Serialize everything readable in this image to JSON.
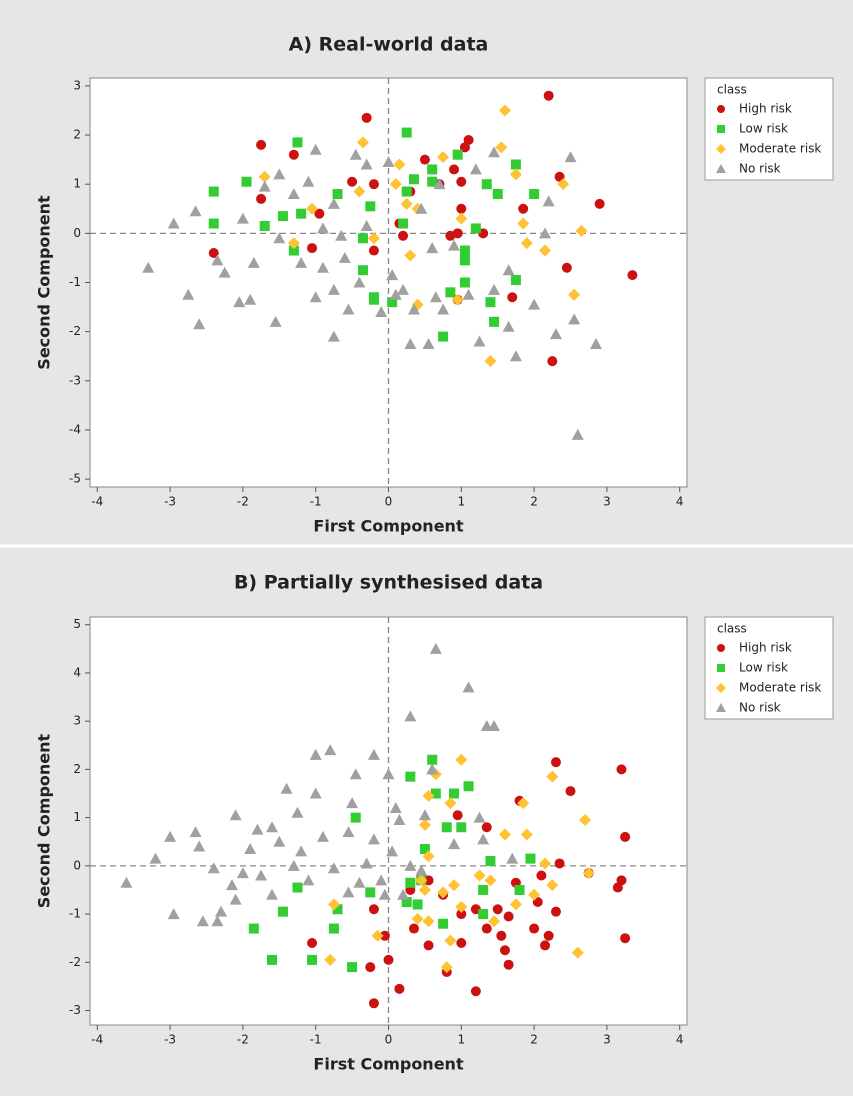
{
  "chart_data": [
    {
      "type": "scatter",
      "title": "A) Real-world data",
      "x_label": "First Component",
      "y_label": "Second Component",
      "legend_title": "class",
      "legend": "right",
      "xlim": [
        -4.1,
        4.1
      ],
      "ylim": [
        -5.16,
        3.16
      ],
      "xticks": [
        -4,
        -3,
        -2,
        -1,
        0,
        1,
        2,
        3,
        4
      ],
      "yticks": [
        -5,
        -4,
        -3,
        -2,
        -1,
        0,
        1,
        2,
        3
      ],
      "vline": 0,
      "hline": 0,
      "series": [
        {
          "name": "High risk",
          "color": "#cc1111",
          "marker": "circle",
          "x": [
            -0.3,
            2.2,
            -1.75,
            -1.3,
            1.1,
            1.05,
            -0.5,
            0.5,
            0.9,
            2.35,
            2.9,
            1.85,
            -1.75,
            -0.95,
            0.15,
            0.95,
            1.3,
            -2.4,
            -0.2,
            -1.05,
            2.45,
            3.35,
            1.7,
            0.95,
            2.25,
            0.7,
            1.0,
            -0.2,
            0.3,
            1.0,
            0.85,
            0.2
          ],
          "values": [
            2.35,
            2.8,
            1.8,
            1.6,
            1.9,
            1.75,
            1.05,
            1.5,
            1.3,
            1.15,
            0.6,
            0.5,
            0.7,
            0.4,
            0.2,
            0.0,
            0.0,
            -0.4,
            -0.35,
            -0.3,
            -0.7,
            -0.85,
            -1.3,
            -1.35,
            -2.6,
            1.0,
            1.05,
            1.0,
            0.85,
            0.5,
            -0.05,
            -0.05
          ]
        },
        {
          "name": "Low risk",
          "color": "#33cc33",
          "marker": "square",
          "x": [
            -1.25,
            0.25,
            0.95,
            -2.4,
            -1.95,
            -2.4,
            -1.7,
            -1.45,
            -1.2,
            -0.7,
            -0.25,
            0.25,
            0.35,
            0.6,
            1.35,
            1.75,
            1.5,
            2.0,
            1.2,
            1.05,
            0.2,
            -0.35,
            -0.35,
            1.05,
            1.05,
            1.4,
            1.45,
            1.75,
            0.85,
            -0.2,
            0.05,
            -0.2,
            0.75,
            -1.3,
            0.6
          ],
          "values": [
            1.85,
            2.05,
            1.6,
            0.85,
            1.05,
            0.2,
            0.15,
            0.35,
            0.4,
            0.8,
            0.55,
            0.85,
            1.1,
            1.3,
            1.0,
            1.4,
            0.8,
            0.8,
            0.1,
            -0.35,
            0.2,
            -0.1,
            -0.75,
            -0.55,
            -1.0,
            -1.4,
            -1.8,
            -0.95,
            -1.2,
            -1.35,
            -1.4,
            -1.3,
            -2.1,
            -0.35,
            1.05
          ]
        },
        {
          "name": "Moderate risk",
          "color": "#ffc233",
          "marker": "diamond",
          "x": [
            1.6,
            -0.35,
            1.55,
            -1.7,
            0.15,
            1.75,
            2.4,
            0.75,
            -0.4,
            0.25,
            0.4,
            1.85,
            -1.05,
            2.15,
            -1.3,
            -0.2,
            1.9,
            0.3,
            2.65,
            0.4,
            0.95,
            2.55,
            1.4,
            1.0,
            0.1
          ],
          "values": [
            2.5,
            1.85,
            1.75,
            1.15,
            1.4,
            1.2,
            1.0,
            1.55,
            0.85,
            0.6,
            0.5,
            0.2,
            0.5,
            -0.35,
            -0.2,
            -0.1,
            -0.2,
            -0.45,
            0.05,
            -1.45,
            -1.35,
            -1.25,
            -2.6,
            0.3,
            1.0
          ]
        },
        {
          "name": "No risk",
          "color": "#a0a0a0",
          "marker": "triangle",
          "x": [
            -3.3,
            -2.95,
            -2.65,
            -2.6,
            -2.75,
            -2.35,
            -2.25,
            -2.05,
            -1.9,
            -1.55,
            -1.85,
            -2.0,
            -1.7,
            -1.5,
            -1.3,
            -1.1,
            -1.0,
            -0.75,
            -0.65,
            -0.9,
            -1.0,
            -0.75,
            -0.55,
            -0.75,
            -0.4,
            -0.3,
            -0.45,
            0.0,
            0.05,
            0.1,
            -0.1,
            0.2,
            0.35,
            0.3,
            0.55,
            0.65,
            0.75,
            1.1,
            1.45,
            1.25,
            1.75,
            1.65,
            2.55,
            2.6,
            2.85,
            2.3,
            2.5,
            2.2,
            2.15,
            1.45,
            1.2,
            0.7,
            0.45,
            0.6,
            -0.3,
            -0.9,
            -1.5,
            -1.2,
            -0.6,
            0.9,
            1.65,
            2.0
          ],
          "values": [
            -0.7,
            0.2,
            0.45,
            -1.85,
            -1.25,
            -0.55,
            -0.8,
            -1.4,
            -1.35,
            -1.8,
            -0.6,
            0.3,
            0.95,
            1.2,
            0.8,
            1.05,
            1.7,
            0.6,
            -0.05,
            -0.7,
            -1.3,
            -1.15,
            -1.55,
            -2.1,
            -1.0,
            1.4,
            1.6,
            1.45,
            -0.85,
            -1.25,
            -1.6,
            -1.15,
            -1.55,
            -2.25,
            -2.25,
            -1.3,
            -1.55,
            -1.25,
            -1.15,
            -2.2,
            -2.5,
            -1.9,
            -1.75,
            -4.1,
            -2.25,
            -2.05,
            1.55,
            0.65,
            0.0,
            1.65,
            1.3,
            1.0,
            0.5,
            -0.3,
            0.15,
            0.1,
            -0.1,
            -0.6,
            -0.5,
            -0.25,
            -0.75,
            -1.45
          ]
        }
      ]
    },
    {
      "type": "scatter",
      "title": "B) Partially synthesised data",
      "x_label": "First Component",
      "y_label": "Second Component",
      "legend_title": "class",
      "legend": "right",
      "xlim": [
        -4.1,
        4.1
      ],
      "ylim": [
        -3.3,
        5.16
      ],
      "xticks": [
        -4,
        -3,
        -2,
        -1,
        0,
        1,
        2,
        3,
        4
      ],
      "yticks": [
        -3,
        -2,
        -1,
        0,
        1,
        2,
        3,
        4,
        5
      ],
      "vline": 0,
      "hline": 0,
      "series": [
        {
          "name": "High risk",
          "color": "#cc1111",
          "marker": "circle",
          "x": [
            2.3,
            3.2,
            2.5,
            1.8,
            3.25,
            0.95,
            1.35,
            2.35,
            3.2,
            3.15,
            2.75,
            3.25,
            2.1,
            2.05,
            2.3,
            1.75,
            1.65,
            1.5,
            1.55,
            1.35,
            1.6,
            1.65,
            2.0,
            2.2,
            2.15,
            1.0,
            1.0,
            1.2,
            0.8,
            0.55,
            0.35,
            0.3,
            0.55,
            -0.25,
            -0.2,
            0.15,
            0.0,
            -1.05,
            -0.2,
            -0.05,
            1.2,
            0.75
          ],
          "values": [
            2.15,
            2.0,
            1.55,
            1.35,
            0.6,
            1.05,
            0.8,
            0.05,
            -0.3,
            -0.45,
            -0.15,
            -1.5,
            -0.2,
            -0.75,
            -0.95,
            -0.35,
            -1.05,
            -0.9,
            -1.45,
            -1.3,
            -1.75,
            -2.05,
            -1.3,
            -1.45,
            -1.65,
            -1.6,
            -1.0,
            -2.6,
            -2.2,
            -1.65,
            -1.3,
            -0.5,
            -0.3,
            -2.1,
            -2.85,
            -2.55,
            -1.95,
            -1.6,
            -0.9,
            -1.45,
            -0.9,
            -0.6
          ]
        },
        {
          "name": "Low risk",
          "color": "#33cc33",
          "marker": "square",
          "x": [
            0.6,
            0.3,
            0.65,
            0.9,
            1.1,
            -0.45,
            0.8,
            1.0,
            1.4,
            1.95,
            0.5,
            1.3,
            1.8,
            0.3,
            0.25,
            -1.25,
            -1.45,
            -1.85,
            -1.6,
            -1.05,
            -0.75,
            -0.5,
            -0.7,
            0.4,
            1.3,
            -0.25,
            0.45,
            0.75
          ],
          "values": [
            2.2,
            1.85,
            1.5,
            1.5,
            1.65,
            1.0,
            0.8,
            0.8,
            0.1,
            0.15,
            0.35,
            -0.5,
            -0.5,
            -0.35,
            -0.75,
            -0.45,
            -0.95,
            -1.3,
            -1.95,
            -1.95,
            -1.3,
            -2.1,
            -0.9,
            -0.8,
            -1.0,
            -0.55,
            -0.3,
            -1.2
          ]
        },
        {
          "name": "Moderate risk",
          "color": "#ffc233",
          "marker": "diamond",
          "x": [
            1.0,
            0.65,
            0.55,
            0.85,
            0.5,
            1.6,
            1.9,
            2.25,
            2.7,
            1.85,
            2.15,
            2.75,
            1.25,
            0.55,
            1.4,
            0.5,
            0.75,
            0.9,
            0.4,
            0.55,
            0.85,
            0.8,
            1.45,
            1.75,
            2.0,
            2.25,
            2.6,
            -0.15,
            -0.75,
            -0.8,
            0.45,
            1.0
          ],
          "values": [
            2.2,
            1.9,
            1.45,
            1.3,
            0.85,
            0.65,
            0.65,
            1.85,
            0.95,
            1.3,
            0.05,
            -0.15,
            -0.2,
            0.2,
            -0.3,
            -0.5,
            -0.55,
            -0.4,
            -1.1,
            -1.15,
            -1.55,
            -2.1,
            -1.15,
            -0.8,
            -0.6,
            -0.4,
            -1.8,
            -1.45,
            -0.8,
            -1.95,
            -0.3,
            -0.85
          ]
        },
        {
          "name": "No risk",
          "color": "#a0a0a0",
          "marker": "triangle",
          "x": [
            0.65,
            1.1,
            0.3,
            1.35,
            1.45,
            -0.8,
            -0.2,
            -1.0,
            0.0,
            0.6,
            -0.45,
            -1.4,
            -1.0,
            -0.5,
            0.1,
            0.5,
            -1.25,
            -1.6,
            -2.1,
            -2.65,
            -3.0,
            -3.2,
            -2.6,
            -2.4,
            -2.15,
            -2.1,
            -2.3,
            -2.55,
            -2.35,
            -2.95,
            -3.6,
            -1.9,
            -1.5,
            -1.2,
            -0.9,
            -0.55,
            -0.2,
            0.05,
            0.3,
            -0.3,
            -0.75,
            -1.1,
            -1.3,
            -1.75,
            -0.55,
            -0.05,
            0.2,
            0.45,
            0.9,
            1.3,
            1.25,
            1.7,
            -1.8,
            -0.4,
            0.15,
            -0.1,
            -2.0,
            -1.6
          ],
          "values": [
            4.5,
            3.7,
            3.1,
            2.9,
            2.9,
            2.4,
            2.3,
            2.3,
            1.9,
            2.0,
            1.9,
            1.6,
            1.5,
            1.3,
            1.2,
            1.05,
            1.1,
            0.8,
            1.05,
            0.7,
            0.6,
            0.15,
            0.4,
            -0.05,
            -0.4,
            -0.7,
            -0.95,
            -1.15,
            -1.15,
            -1.0,
            -0.35,
            0.35,
            0.5,
            0.3,
            0.6,
            0.7,
            0.55,
            0.3,
            0.0,
            0.05,
            -0.05,
            -0.3,
            0.0,
            -0.2,
            -0.55,
            -0.6,
            -0.6,
            -0.1,
            0.45,
            0.55,
            1.0,
            0.15,
            0.75,
            -0.35,
            0.95,
            -0.3,
            -0.15,
            -0.6
          ]
        }
      ]
    }
  ]
}
